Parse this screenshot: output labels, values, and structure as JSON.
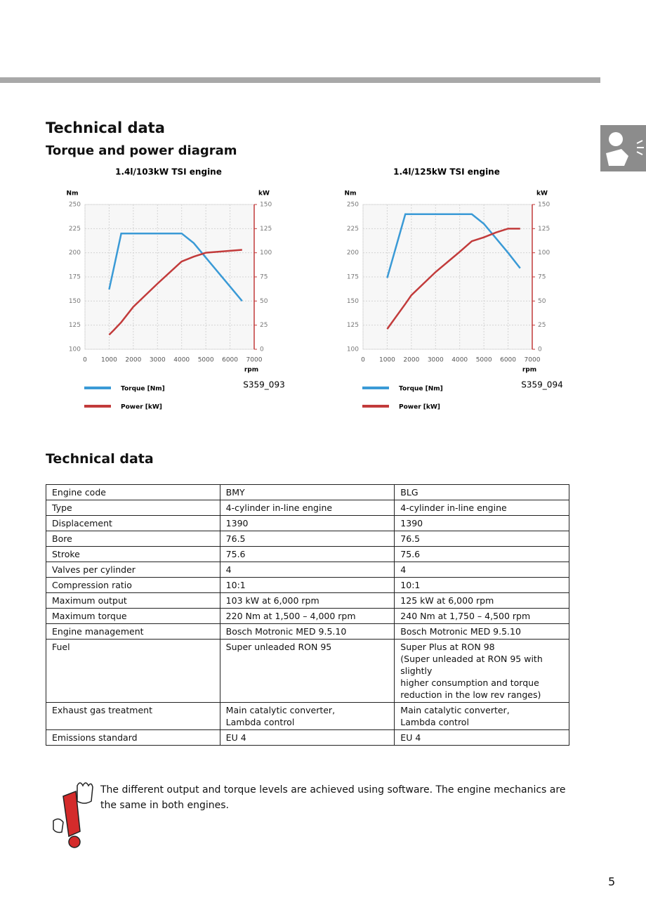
{
  "header": {
    "title": "Technical data",
    "subtitle": "Torque and power diagram"
  },
  "chart_data": [
    {
      "type": "line",
      "title": "1.4l/103kW TSI engine",
      "y_label": "Nm",
      "y2_label": "kW",
      "x_label": "rpm",
      "figure_code": "S359_093",
      "x": [
        1000,
        1200,
        1500,
        2000,
        3000,
        4000,
        4500,
        5000,
        6000,
        6500
      ],
      "series": [
        {
          "name": "Torque [Nm]",
          "color": "#3a9ad6",
          "values": [
            162,
            185,
            220,
            220,
            220,
            220,
            210,
            195,
            165,
            150
          ]
        },
        {
          "name": "Power [kW]",
          "color": "#c23b3b",
          "axis": "y2",
          "values": [
            15,
            20,
            28,
            44,
            68,
            91,
            96,
            100,
            102,
            103
          ]
        }
      ],
      "xlim": [
        0,
        7000
      ],
      "xticks": [
        0,
        1000,
        2000,
        3000,
        4000,
        5000,
        6000,
        7000
      ],
      "ylim": [
        100,
        250
      ],
      "yticks": [
        100,
        125,
        150,
        175,
        200,
        225,
        250
      ],
      "y2lim": [
        0,
        150
      ],
      "y2ticks": [
        0,
        25,
        50,
        75,
        100,
        125,
        150
      ],
      "grid": true
    },
    {
      "type": "line",
      "title": "1.4l/125kW TSI engine",
      "y_label": "Nm",
      "y2_label": "kW",
      "x_label": "rpm",
      "figure_code": "S359_094",
      "x": [
        1000,
        1750,
        2000,
        3000,
        4000,
        4500,
        5000,
        5500,
        6000,
        6500
      ],
      "series": [
        {
          "name": "Torque [Nm]",
          "color": "#3a9ad6",
          "values": [
            174,
            240,
            240,
            240,
            240,
            240,
            230,
            215,
            200,
            184
          ]
        },
        {
          "name": "Power [kW]",
          "color": "#c23b3b",
          "axis": "y2",
          "values": [
            21,
            47,
            56,
            80,
            101,
            112,
            116,
            121,
            125,
            125
          ]
        }
      ],
      "xlim": [
        0,
        7000
      ],
      "xticks": [
        0,
        1000,
        2000,
        3000,
        4000,
        5000,
        6000,
        7000
      ],
      "ylim": [
        100,
        250
      ],
      "yticks": [
        100,
        125,
        150,
        175,
        200,
        225,
        250
      ],
      "y2lim": [
        0,
        150
      ],
      "y2ticks": [
        0,
        25,
        50,
        75,
        100,
        125,
        150
      ],
      "grid": true
    }
  ],
  "table": {
    "title": "Technical data",
    "rows": [
      [
        "Engine code",
        "BMY",
        "BLG"
      ],
      [
        "Type",
        "4-cylinder in-line engine",
        "4-cylinder in-line engine"
      ],
      [
        "Displacement",
        "1390",
        "1390"
      ],
      [
        "Bore",
        "76.5",
        "76.5"
      ],
      [
        "Stroke",
        "75.6",
        "75.6"
      ],
      [
        "Valves per cylinder",
        "4",
        "4"
      ],
      [
        "Compression ratio",
        "10:1",
        "10:1"
      ],
      [
        "Maximum output",
        "103 kW at 6,000 rpm",
        "125 kW at 6,000 rpm"
      ],
      [
        "Maximum torque",
        "220 Nm at 1,500 – 4,000 rpm",
        "240 Nm at 1,750 – 4,500 rpm"
      ],
      [
        "Engine management",
        "Bosch Motronic MED 9.5.10",
        "Bosch Motronic MED 9.5.10"
      ],
      [
        "Fuel",
        "Super unleaded RON 95",
        "Super Plus at RON 98\n(Super unleaded at RON 95 with slightly\nhigher consumption and torque\nreduction in the low rev ranges)"
      ],
      [
        "Exhaust gas treatment",
        "Main catalytic converter,\nLambda control",
        "Main catalytic converter,\nLambda control"
      ],
      [
        "Emissions standard",
        "EU 4",
        "EU 4"
      ]
    ]
  },
  "note": "The different output and torque levels are achieved using software. The engine mechanics are the same in both engines.",
  "page_number": "5"
}
